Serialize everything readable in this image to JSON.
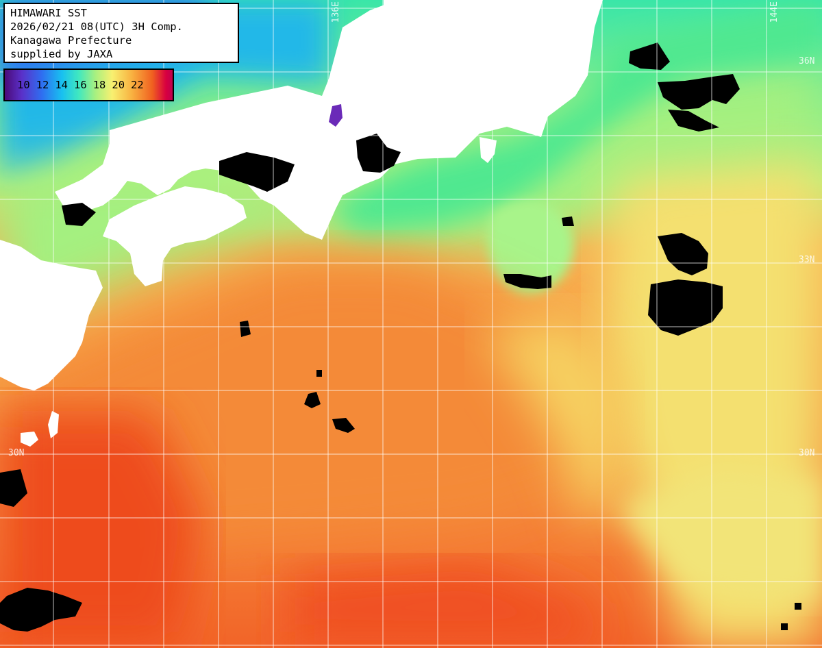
{
  "caption": {
    "line1": "HIMAWARI SST",
    "line2": "2026/02/21 08(UTC) 3H Comp.",
    "line3": "Kanagawa Prefecture",
    "line4": "supplied by JAXA"
  },
  "legend": {
    "ticks": [
      "10",
      "12",
      "14",
      "16",
      "18",
      "20",
      "22"
    ],
    "palette": [
      "#4b0a78",
      "#2f6ef0",
      "#18c0f0",
      "#a8f080",
      "#f8f070",
      "#f8b040",
      "#f06020",
      "#c00050"
    ]
  },
  "grid_labels": {
    "lon_136": "136E",
    "lon_144": "144E",
    "lat_36": "36N",
    "lat_33": "33N",
    "lat_30_left": "30N",
    "lat_30_right": "30N"
  },
  "colors": {
    "land": "#ffffff",
    "cloud": "#000000",
    "grid": "#ffffff"
  }
}
